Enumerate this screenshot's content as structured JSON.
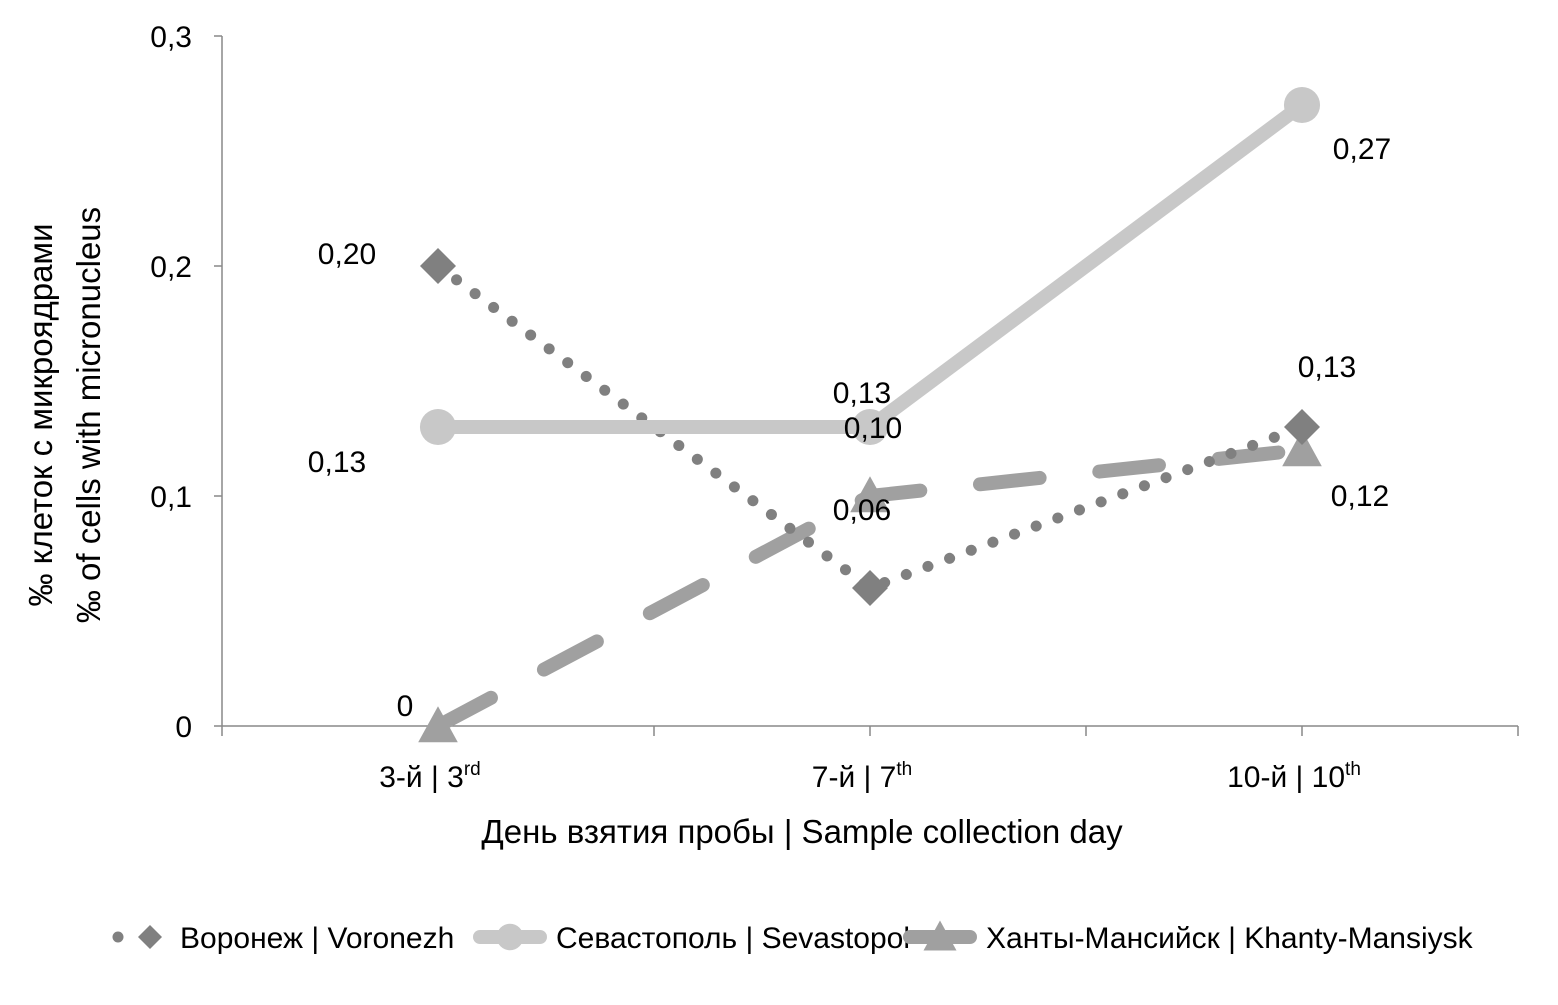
{
  "chart_data": {
    "type": "line",
    "categories": [
      {
        "base": "3-й | 3",
        "sup": "rd"
      },
      {
        "base": "7-й | 7",
        "sup": "th"
      },
      {
        "base": "10-й | 10",
        "sup": "th"
      }
    ],
    "xlabel": "День взятия пробы | Sample collection day",
    "ylabel": [
      "‰ клеток с микроядрами",
      "‰ of cells with micronucleus"
    ],
    "ylim": [
      0,
      0.3
    ],
    "yticks": [
      "0",
      "0,1",
      "0,2",
      "0,3"
    ],
    "grid": false,
    "legend": "bottom",
    "series": [
      {
        "name": "Воронеж | Voronezh",
        "values": [
          0.2,
          0.06,
          0.13
        ],
        "labels": [
          "0,20",
          "0,06",
          "0,13"
        ],
        "color": "#808080",
        "marker": "diamond",
        "style": "dotted"
      },
      {
        "name": "Севастополь | Sevastopol",
        "values": [
          0.13,
          0.13,
          0.27
        ],
        "labels": [
          "0,13",
          "0,13",
          "0,27"
        ],
        "color": "#c8c8c8",
        "marker": "circle",
        "style": "solid"
      },
      {
        "name": "Ханты-Мансийск | Khanty-Mansiysk",
        "values": [
          0,
          0.1,
          0.12
        ],
        "labels": [
          "0",
          "0,10",
          "0,12"
        ],
        "color": "#a0a0a0",
        "marker": "triangle",
        "style": "dashed"
      }
    ]
  }
}
